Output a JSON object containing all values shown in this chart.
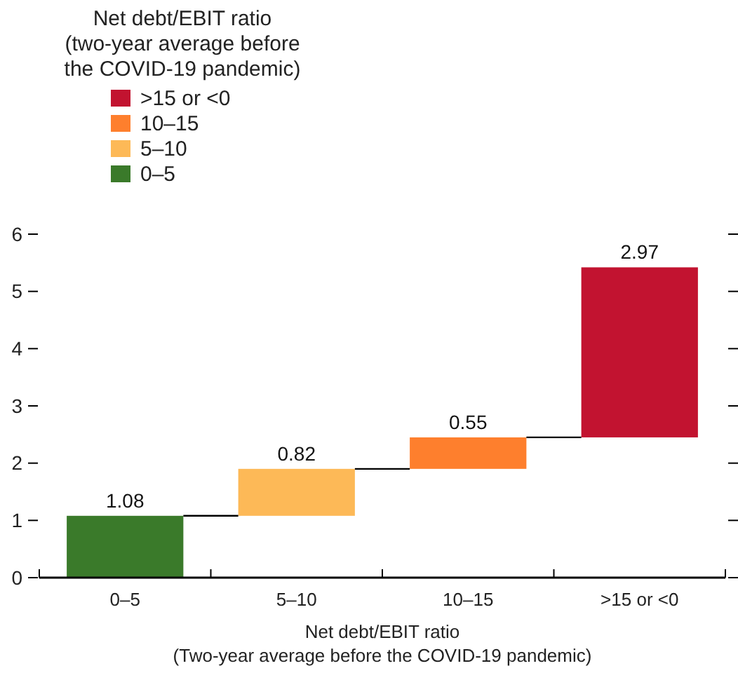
{
  "chart_data": {
    "type": "bar",
    "categories": [
      "0–5",
      "5–10",
      "10–15",
      ">15 or <0"
    ],
    "series": [
      {
        "name": "0–5",
        "color": "#3a7a2a",
        "values": [
          1.08,
          null,
          null,
          null
        ],
        "base": [
          0,
          null,
          null,
          null
        ]
      },
      {
        "name": "5–10",
        "color": "#fdb957",
        "values": [
          null,
          0.82,
          null,
          null
        ],
        "base": [
          null,
          1.08,
          null,
          null
        ]
      },
      {
        "name": "10–15",
        "color": "#fe7f2d",
        "values": [
          null,
          null,
          0.55,
          null
        ],
        "base": [
          null,
          null,
          1.9,
          null
        ]
      },
      {
        "name": ">15 or <0",
        "color": "#c21330",
        "values": [
          null,
          null,
          null,
          2.97
        ],
        "base": [
          null,
          null,
          null,
          2.45
        ]
      }
    ],
    "data_labels": true,
    "xlabel": "Net debt/EBIT ratio\n(Two-year average before the COVID-19 pandemic)",
    "legend_title": "Net debt/EBIT ratio\n(two-year average before\nthe COVID-19 pandemic)",
    "legend": "top left",
    "ylim": [
      0,
      6
    ],
    "yticks": [
      0,
      1,
      2,
      3,
      4,
      5,
      6
    ],
    "grid": false
  }
}
